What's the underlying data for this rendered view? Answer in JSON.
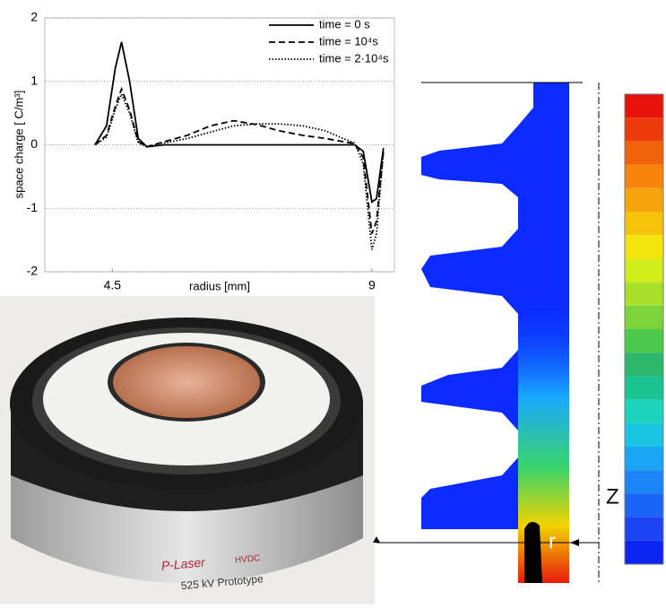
{
  "chart_data": {
    "type": "line",
    "ylabel": "space charge [ C/m³]",
    "xlabel": "radius [mm]",
    "x": [
      4.2,
      4.4,
      4.55,
      4.66,
      4.8,
      4.95,
      5.1,
      5.4,
      5.8,
      6.2,
      6.6,
      7.0,
      7.4,
      7.8,
      8.2,
      8.5,
      8.7,
      8.85,
      9.0,
      9.08,
      9.2
    ],
    "series": [
      {
        "name": "time = 0 s",
        "color": "#000000",
        "dash": "solid",
        "values": [
          0,
          0.3,
          1.2,
          1.62,
          1.0,
          0.1,
          -0.03,
          0,
          0,
          0,
          0,
          0,
          0,
          0,
          0,
          0,
          0,
          -0.1,
          -0.9,
          -0.85,
          -0.05
        ]
      },
      {
        "name": "time = 10⁴s",
        "color": "#000000",
        "dash": "dashed",
        "values": [
          0,
          0.15,
          0.6,
          0.88,
          0.55,
          0.05,
          -0.03,
          0.05,
          0.15,
          0.3,
          0.38,
          0.32,
          0.22,
          0.15,
          0.1,
          0.05,
          0.02,
          -0.2,
          -1.4,
          -1.2,
          -0.1
        ]
      },
      {
        "name": "time = 2·10⁴s",
        "color": "#000000",
        "dash": "dotted",
        "values": [
          0,
          0.12,
          0.55,
          0.8,
          0.5,
          0.03,
          -0.03,
          0.03,
          0.1,
          0.2,
          0.3,
          0.33,
          0.33,
          0.3,
          0.22,
          0.1,
          0.03,
          -0.3,
          -1.65,
          -1.4,
          -0.1
        ]
      }
    ],
    "xlim": [
      3.33,
      9.39
    ],
    "ylim": [
      -2,
      2
    ],
    "xticks": [
      4.5,
      9
    ],
    "yticks": [
      -2,
      -1,
      0,
      1,
      2
    ],
    "grid": true,
    "legend": "upper right"
  },
  "photo": {
    "brand": "P-Laser",
    "tag": "HVDC",
    "caption": "525 kV Prototype"
  },
  "simulation": {
    "z_label": "Z",
    "r_label": "r"
  }
}
